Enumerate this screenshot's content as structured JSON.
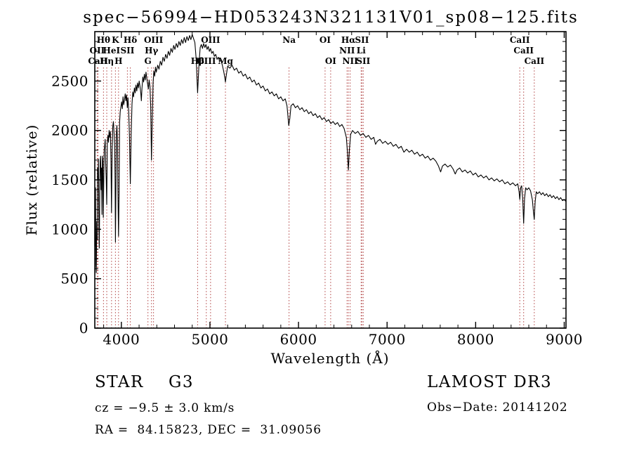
{
  "chart_data": {
    "type": "line",
    "title": "spec−56994−HD053243N321131V01_sp08−125.fits",
    "xlabel": "Wavelength (Å)",
    "ylabel": "Flux (relative)",
    "xlim": [
      3700,
      9020
    ],
    "ylim": [
      0,
      3000
    ],
    "xticks": [
      4000,
      5000,
      6000,
      7000,
      8000,
      9000
    ],
    "yticks": [
      0,
      500,
      1000,
      1500,
      2000,
      2500
    ],
    "x_minor_step": 200,
    "y_minor_step": 100,
    "grid": false,
    "legend": "none",
    "series_color": "#000000",
    "marker_line_color": "#b04040",
    "spectral_lines": [
      {
        "label": "Hθ",
        "wavelength": 3798,
        "row": 1
      },
      {
        "label": "K",
        "wavelength": 3933,
        "row": 1
      },
      {
        "label": "Hδ",
        "wavelength": 4101,
        "row": 1
      },
      {
        "label": "OII",
        "wavelength": 3727,
        "row": 2
      },
      {
        "label": "HeI",
        "wavelength": 3889,
        "row": 2
      },
      {
        "label": "SII",
        "wavelength": 4068,
        "row": 2
      },
      {
        "label": "CaII",
        "wavelength": 3737,
        "row": 3
      },
      {
        "label": "Hη",
        "wavelength": 3835,
        "row": 3
      },
      {
        "label": "H",
        "wavelength": 3968,
        "row": 3
      },
      {
        "label": "OIII",
        "wavelength": 4363,
        "row": 1
      },
      {
        "label": "Hγ",
        "wavelength": 4340,
        "row": 2
      },
      {
        "label": "G",
        "wavelength": 4300,
        "row": 3
      },
      {
        "label": "OIII",
        "wavelength": 5007,
        "row": 1
      },
      {
        "label": "Hβ",
        "wavelength": 4861,
        "row": 3
      },
      {
        "label": "OIII",
        "wavelength": 4959,
        "row": 3
      },
      {
        "label": "Mg",
        "wavelength": 5175,
        "row": 3
      },
      {
        "label": "Na",
        "wavelength": 5893,
        "row": 1
      },
      {
        "label": "OI",
        "wavelength": 6300,
        "row": 1
      },
      {
        "label": "OI",
        "wavelength": 6363,
        "row": 3
      },
      {
        "label": "Hα",
        "wavelength": 6563,
        "row": 1
      },
      {
        "label": "SII",
        "wavelength": 6716,
        "row": 1
      },
      {
        "label": "NII",
        "wavelength": 6548,
        "row": 2
      },
      {
        "label": "Li",
        "wavelength": 6707,
        "row": 2
      },
      {
        "label": "NII",
        "wavelength": 6583,
        "row": 3
      },
      {
        "label": "SII",
        "wavelength": 6731,
        "row": 3
      },
      {
        "label": "CaII",
        "wavelength": 8498,
        "row": 1
      },
      {
        "label": "CaII",
        "wavelength": 8542,
        "row": 2
      },
      {
        "label": "CaII",
        "wavelength": 8662,
        "row": 3
      }
    ],
    "points": [
      [
        3700,
        1250
      ],
      [
        3704,
        830
      ],
      [
        3708,
        1420
      ],
      [
        3713,
        640
      ],
      [
        3717,
        560
      ],
      [
        3722,
        1080
      ],
      [
        3727,
        900
      ],
      [
        3731,
        1620
      ],
      [
        3736,
        1500
      ],
      [
        3741,
        1710
      ],
      [
        3746,
        1000
      ],
      [
        3751,
        810
      ],
      [
        3756,
        1420
      ],
      [
        3761,
        1690
      ],
      [
        3766,
        1740
      ],
      [
        3771,
        1400
      ],
      [
        3776,
        1620
      ],
      [
        3781,
        1150
      ],
      [
        3786,
        1740
      ],
      [
        3791,
        1690
      ],
      [
        3796,
        1120
      ],
      [
        3801,
        1450
      ],
      [
        3806,
        1800
      ],
      [
        3811,
        1840
      ],
      [
        3817,
        1910
      ],
      [
        3823,
        1670
      ],
      [
        3829,
        1500
      ],
      [
        3835,
        1250
      ],
      [
        3841,
        1880
      ],
      [
        3848,
        1950
      ],
      [
        3855,
        1880
      ],
      [
        3862,
        2000
      ],
      [
        3869,
        1930
      ],
      [
        3876,
        1990
      ],
      [
        3882,
        1710
      ],
      [
        3889,
        1170
      ],
      [
        3896,
        1790
      ],
      [
        3903,
        2040
      ],
      [
        3910,
        2090
      ],
      [
        3917,
        1980
      ],
      [
        3924,
        1850
      ],
      [
        3929,
        1500
      ],
      [
        3933,
        870
      ],
      [
        3938,
        1350
      ],
      [
        3944,
        1980
      ],
      [
        3950,
        2050
      ],
      [
        3956,
        1890
      ],
      [
        3961,
        1400
      ],
      [
        3968,
        930
      ],
      [
        3974,
        1380
      ],
      [
        3980,
        2080
      ],
      [
        3987,
        2190
      ],
      [
        3995,
        2240
      ],
      [
        4003,
        2290
      ],
      [
        4011,
        2220
      ],
      [
        4019,
        2340
      ],
      [
        4027,
        2260
      ],
      [
        4035,
        2310
      ],
      [
        4043,
        2370
      ],
      [
        4051,
        2300
      ],
      [
        4059,
        2360
      ],
      [
        4067,
        2230
      ],
      [
        4075,
        2330
      ],
      [
        4083,
        2180
      ],
      [
        4091,
        1950
      ],
      [
        4101,
        1460
      ],
      [
        4111,
        1960
      ],
      [
        4120,
        2270
      ],
      [
        4129,
        2390
      ],
      [
        4138,
        2340
      ],
      [
        4147,
        2430
      ],
      [
        4156,
        2380
      ],
      [
        4165,
        2460
      ],
      [
        4174,
        2400
      ],
      [
        4183,
        2480
      ],
      [
        4192,
        2430
      ],
      [
        4201,
        2500
      ],
      [
        4210,
        2450
      ],
      [
        4219,
        2380
      ],
      [
        4226,
        2300
      ],
      [
        4233,
        2430
      ],
      [
        4242,
        2540
      ],
      [
        4251,
        2490
      ],
      [
        4260,
        2570
      ],
      [
        4269,
        2510
      ],
      [
        4278,
        2590
      ],
      [
        4287,
        2530
      ],
      [
        4296,
        2470
      ],
      [
        4305,
        2420
      ],
      [
        4314,
        2510
      ],
      [
        4323,
        2440
      ],
      [
        4331,
        2240
      ],
      [
        4340,
        1700
      ],
      [
        4349,
        2140
      ],
      [
        4358,
        2480
      ],
      [
        4367,
        2600
      ],
      [
        4376,
        2550
      ],
      [
        4385,
        2640
      ],
      [
        4394,
        2590
      ],
      [
        4410,
        2660
      ],
      [
        4425,
        2620
      ],
      [
        4440,
        2700
      ],
      [
        4455,
        2660
      ],
      [
        4470,
        2740
      ],
      [
        4485,
        2700
      ],
      [
        4500,
        2770
      ],
      [
        4515,
        2730
      ],
      [
        4530,
        2800
      ],
      [
        4545,
        2760
      ],
      [
        4560,
        2830
      ],
      [
        4575,
        2790
      ],
      [
        4590,
        2860
      ],
      [
        4605,
        2820
      ],
      [
        4620,
        2880
      ],
      [
        4635,
        2840
      ],
      [
        4650,
        2900
      ],
      [
        4665,
        2860
      ],
      [
        4680,
        2920
      ],
      [
        4695,
        2880
      ],
      [
        4710,
        2940
      ],
      [
        4725,
        2890
      ],
      [
        4740,
        2950
      ],
      [
        4755,
        2910
      ],
      [
        4770,
        2960
      ],
      [
        4785,
        2920
      ],
      [
        4800,
        2970
      ],
      [
        4815,
        2930
      ],
      [
        4830,
        2890
      ],
      [
        4845,
        2720
      ],
      [
        4861,
        2380
      ],
      [
        4877,
        2690
      ],
      [
        4890,
        2840
      ],
      [
        4903,
        2870
      ],
      [
        4916,
        2830
      ],
      [
        4929,
        2880
      ],
      [
        4942,
        2840
      ],
      [
        4955,
        2870
      ],
      [
        4968,
        2820
      ],
      [
        4981,
        2850
      ],
      [
        4994,
        2800
      ],
      [
        5007,
        2830
      ],
      [
        5020,
        2780
      ],
      [
        5035,
        2800
      ],
      [
        5050,
        2750
      ],
      [
        5065,
        2770
      ],
      [
        5080,
        2720
      ],
      [
        5095,
        2740
      ],
      [
        5110,
        2700
      ],
      [
        5125,
        2710
      ],
      [
        5140,
        2660
      ],
      [
        5155,
        2600
      ],
      [
        5167,
        2540
      ],
      [
        5175,
        2490
      ],
      [
        5185,
        2560
      ],
      [
        5200,
        2650
      ],
      [
        5225,
        2630
      ],
      [
        5250,
        2660
      ],
      [
        5275,
        2610
      ],
      [
        5300,
        2630
      ],
      [
        5325,
        2580
      ],
      [
        5350,
        2600
      ],
      [
        5375,
        2550
      ],
      [
        5400,
        2570
      ],
      [
        5425,
        2520
      ],
      [
        5450,
        2540
      ],
      [
        5475,
        2490
      ],
      [
        5500,
        2510
      ],
      [
        5525,
        2460
      ],
      [
        5550,
        2480
      ],
      [
        5575,
        2430
      ],
      [
        5600,
        2450
      ],
      [
        5625,
        2400
      ],
      [
        5650,
        2420
      ],
      [
        5675,
        2370
      ],
      [
        5700,
        2390
      ],
      [
        5725,
        2350
      ],
      [
        5750,
        2370
      ],
      [
        5775,
        2320
      ],
      [
        5800,
        2340
      ],
      [
        5825,
        2300
      ],
      [
        5850,
        2320
      ],
      [
        5870,
        2250
      ],
      [
        5890,
        2050
      ],
      [
        5902,
        2120
      ],
      [
        5915,
        2250
      ],
      [
        5940,
        2270
      ],
      [
        5965,
        2230
      ],
      [
        5990,
        2250
      ],
      [
        6015,
        2210
      ],
      [
        6040,
        2230
      ],
      [
        6065,
        2190
      ],
      [
        6090,
        2210
      ],
      [
        6115,
        2170
      ],
      [
        6140,
        2190
      ],
      [
        6165,
        2150
      ],
      [
        6190,
        2170
      ],
      [
        6215,
        2130
      ],
      [
        6240,
        2150
      ],
      [
        6265,
        2110
      ],
      [
        6290,
        2130
      ],
      [
        6315,
        2090
      ],
      [
        6340,
        2110
      ],
      [
        6365,
        2070
      ],
      [
        6390,
        2090
      ],
      [
        6415,
        2060
      ],
      [
        6440,
        2080
      ],
      [
        6465,
        2040
      ],
      [
        6490,
        2060
      ],
      [
        6515,
        2020
      ],
      [
        6540,
        1930
      ],
      [
        6552,
        1790
      ],
      [
        6563,
        1600
      ],
      [
        6575,
        1810
      ],
      [
        6588,
        1960
      ],
      [
        6610,
        2000
      ],
      [
        6640,
        1970
      ],
      [
        6670,
        1990
      ],
      [
        6700,
        1950
      ],
      [
        6730,
        1970
      ],
      [
        6760,
        1930
      ],
      [
        6790,
        1950
      ],
      [
        6820,
        1910
      ],
      [
        6850,
        1930
      ],
      [
        6870,
        1860
      ],
      [
        6890,
        1890
      ],
      [
        6920,
        1910
      ],
      [
        6950,
        1870
      ],
      [
        6980,
        1890
      ],
      [
        7010,
        1860
      ],
      [
        7040,
        1880
      ],
      [
        7070,
        1840
      ],
      [
        7100,
        1860
      ],
      [
        7130,
        1820
      ],
      [
        7160,
        1840
      ],
      [
        7190,
        1780
      ],
      [
        7220,
        1810
      ],
      [
        7250,
        1780
      ],
      [
        7280,
        1800
      ],
      [
        7310,
        1760
      ],
      [
        7340,
        1780
      ],
      [
        7370,
        1740
      ],
      [
        7400,
        1760
      ],
      [
        7430,
        1720
      ],
      [
        7460,
        1740
      ],
      [
        7490,
        1700
      ],
      [
        7520,
        1720
      ],
      [
        7550,
        1690
      ],
      [
        7580,
        1640
      ],
      [
        7605,
        1580
      ],
      [
        7625,
        1640
      ],
      [
        7655,
        1660
      ],
      [
        7685,
        1630
      ],
      [
        7715,
        1650
      ],
      [
        7745,
        1610
      ],
      [
        7770,
        1560
      ],
      [
        7790,
        1600
      ],
      [
        7820,
        1620
      ],
      [
        7850,
        1580
      ],
      [
        7880,
        1600
      ],
      [
        7910,
        1570
      ],
      [
        7940,
        1590
      ],
      [
        7970,
        1550
      ],
      [
        8000,
        1570
      ],
      [
        8030,
        1530
      ],
      [
        8060,
        1550
      ],
      [
        8090,
        1520
      ],
      [
        8120,
        1540
      ],
      [
        8150,
        1500
      ],
      [
        8180,
        1520
      ],
      [
        8210,
        1490
      ],
      [
        8240,
        1510
      ],
      [
        8270,
        1480
      ],
      [
        8300,
        1500
      ],
      [
        8330,
        1460
      ],
      [
        8360,
        1480
      ],
      [
        8390,
        1450
      ],
      [
        8420,
        1470
      ],
      [
        8450,
        1440
      ],
      [
        8475,
        1460
      ],
      [
        8490,
        1380
      ],
      [
        8498,
        1300
      ],
      [
        8508,
        1420
      ],
      [
        8520,
        1440
      ],
      [
        8532,
        1300
      ],
      [
        8542,
        1060
      ],
      [
        8552,
        1310
      ],
      [
        8565,
        1420
      ],
      [
        8580,
        1400
      ],
      [
        8600,
        1420
      ],
      [
        8620,
        1390
      ],
      [
        8640,
        1300
      ],
      [
        8652,
        1180
      ],
      [
        8662,
        1100
      ],
      [
        8672,
        1280
      ],
      [
        8685,
        1380
      ],
      [
        8700,
        1360
      ],
      [
        8720,
        1380
      ],
      [
        8740,
        1350
      ],
      [
        8760,
        1370
      ],
      [
        8780,
        1340
      ],
      [
        8800,
        1360
      ],
      [
        8820,
        1330
      ],
      [
        8840,
        1350
      ],
      [
        8860,
        1320
      ],
      [
        8880,
        1340
      ],
      [
        8900,
        1310
      ],
      [
        8920,
        1330
      ],
      [
        8940,
        1300
      ],
      [
        8960,
        1320
      ],
      [
        8980,
        1290
      ],
      [
        9000,
        1300
      ],
      [
        9020,
        1280
      ]
    ]
  },
  "footer": {
    "class_label": "STAR",
    "subclass": "G3",
    "survey": "LAMOST DR3",
    "cz_line": "cz = −9.5 ± 3.0 km/s",
    "obs_date": "Obs−Date: 20141202",
    "radec_line": "RA =  84.15823, DEC =  31.09056"
  }
}
